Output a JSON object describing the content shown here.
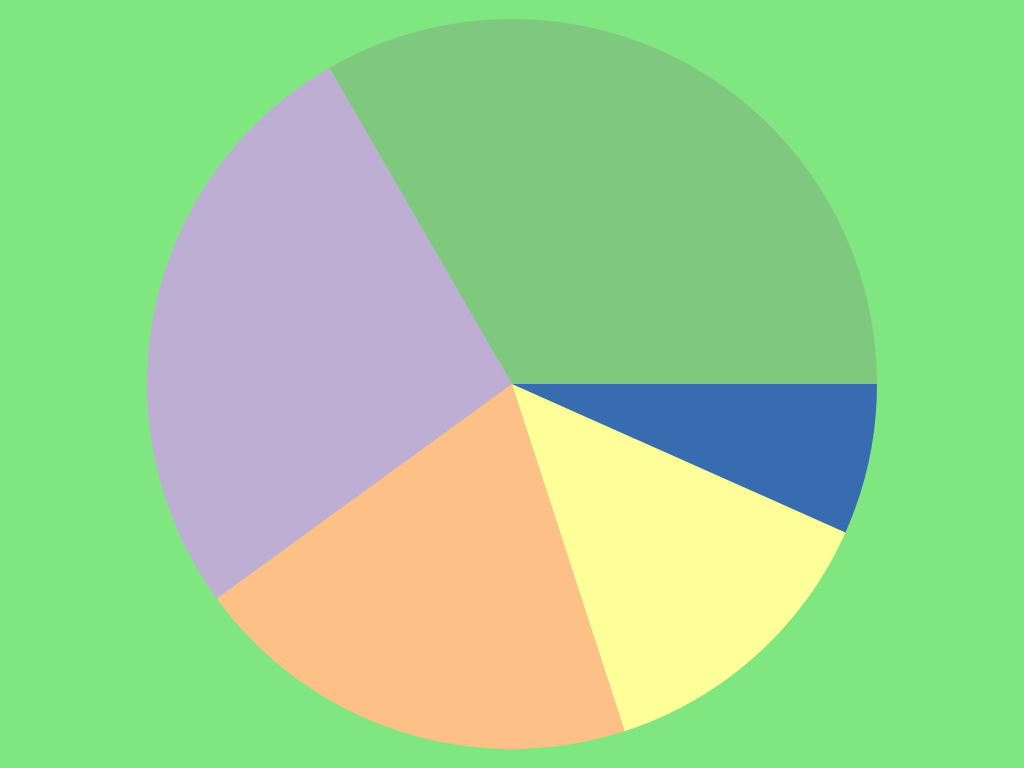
{
  "background_color": "#80e680",
  "chart_data": {
    "type": "pie",
    "values": [
      5,
      4,
      3,
      2,
      1
    ],
    "colors": [
      "#7fc97f",
      "#beaed4",
      "#fdc086",
      "#ffff99",
      "#386cb0"
    ],
    "start_angle_deg": 0,
    "direction": "counterclockwise",
    "legend": "none"
  }
}
